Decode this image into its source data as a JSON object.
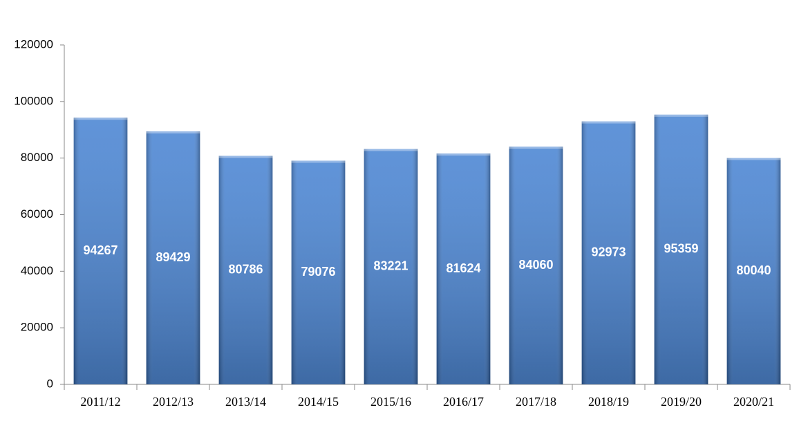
{
  "chart_data": {
    "type": "bar",
    "categories": [
      "2011/12",
      "2012/13",
      "2013/14",
      "2014/15",
      "2015/16",
      "2016/17",
      "2017/18",
      "2018/19",
      "2019/20",
      "2020/21"
    ],
    "values": [
      94267,
      89429,
      80786,
      79076,
      83221,
      81624,
      84060,
      92973,
      95359,
      80040
    ],
    "color": "#3b7bd0",
    "ylim": [
      0,
      120000
    ],
    "yticks": [
      0,
      20000,
      40000,
      60000,
      80000,
      100000,
      120000
    ],
    "grid": false
  }
}
